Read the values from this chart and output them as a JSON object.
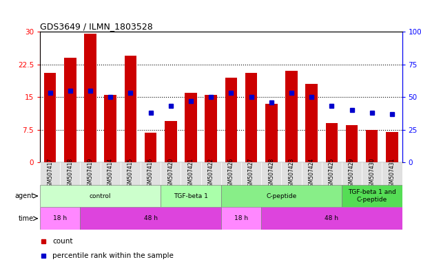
{
  "title": "GDS3649 / ILMN_1803528",
  "samples": [
    "GSM507417",
    "GSM507418",
    "GSM507419",
    "GSM507414",
    "GSM507415",
    "GSM507416",
    "GSM507420",
    "GSM507421",
    "GSM507422",
    "GSM507426",
    "GSM507427",
    "GSM507428",
    "GSM507423",
    "GSM507424",
    "GSM507425",
    "GSM507429",
    "GSM507430",
    "GSM507431"
  ],
  "counts": [
    20.5,
    24.0,
    29.5,
    15.5,
    24.5,
    6.8,
    9.5,
    16.0,
    15.5,
    19.5,
    20.5,
    13.5,
    21.0,
    18.0,
    9.0,
    8.5,
    7.5,
    7.0
  ],
  "percentiles": [
    53,
    55,
    55,
    50,
    53,
    38,
    43,
    47,
    50,
    53,
    50,
    46,
    53,
    50,
    43,
    40,
    38,
    37
  ],
  "bar_color": "#cc0000",
  "dot_color": "#0000cc",
  "ylim_left": [
    0,
    30
  ],
  "ylim_right": [
    0,
    100
  ],
  "yticks_left": [
    0,
    7.5,
    15,
    22.5,
    30
  ],
  "yticks_right": [
    0,
    25,
    50,
    75,
    100
  ],
  "ytick_labels_left": [
    "0",
    "7.5",
    "15",
    "22.5",
    "30"
  ],
  "ytick_labels_right": [
    "0",
    "25",
    "50",
    "75",
    "100%"
  ],
  "agent_groups": [
    {
      "label": "control",
      "start": 0,
      "end": 5,
      "color": "#ccffcc"
    },
    {
      "label": "TGF-beta 1",
      "start": 6,
      "end": 8,
      "color": "#aaffaa"
    },
    {
      "label": "C-peptide",
      "start": 9,
      "end": 14,
      "color": "#88ee88"
    },
    {
      "label": "TGF-beta 1 and\nC-peptide",
      "start": 15,
      "end": 17,
      "color": "#55dd55"
    }
  ],
  "time_groups": [
    {
      "label": "18 h",
      "start": 0,
      "end": 1,
      "color": "#ff88ff"
    },
    {
      "label": "48 h",
      "start": 2,
      "end": 8,
      "color": "#dd44dd"
    },
    {
      "label": "18 h",
      "start": 9,
      "end": 10,
      "color": "#ff88ff"
    },
    {
      "label": "48 h",
      "start": 11,
      "end": 17,
      "color": "#dd44dd"
    }
  ]
}
